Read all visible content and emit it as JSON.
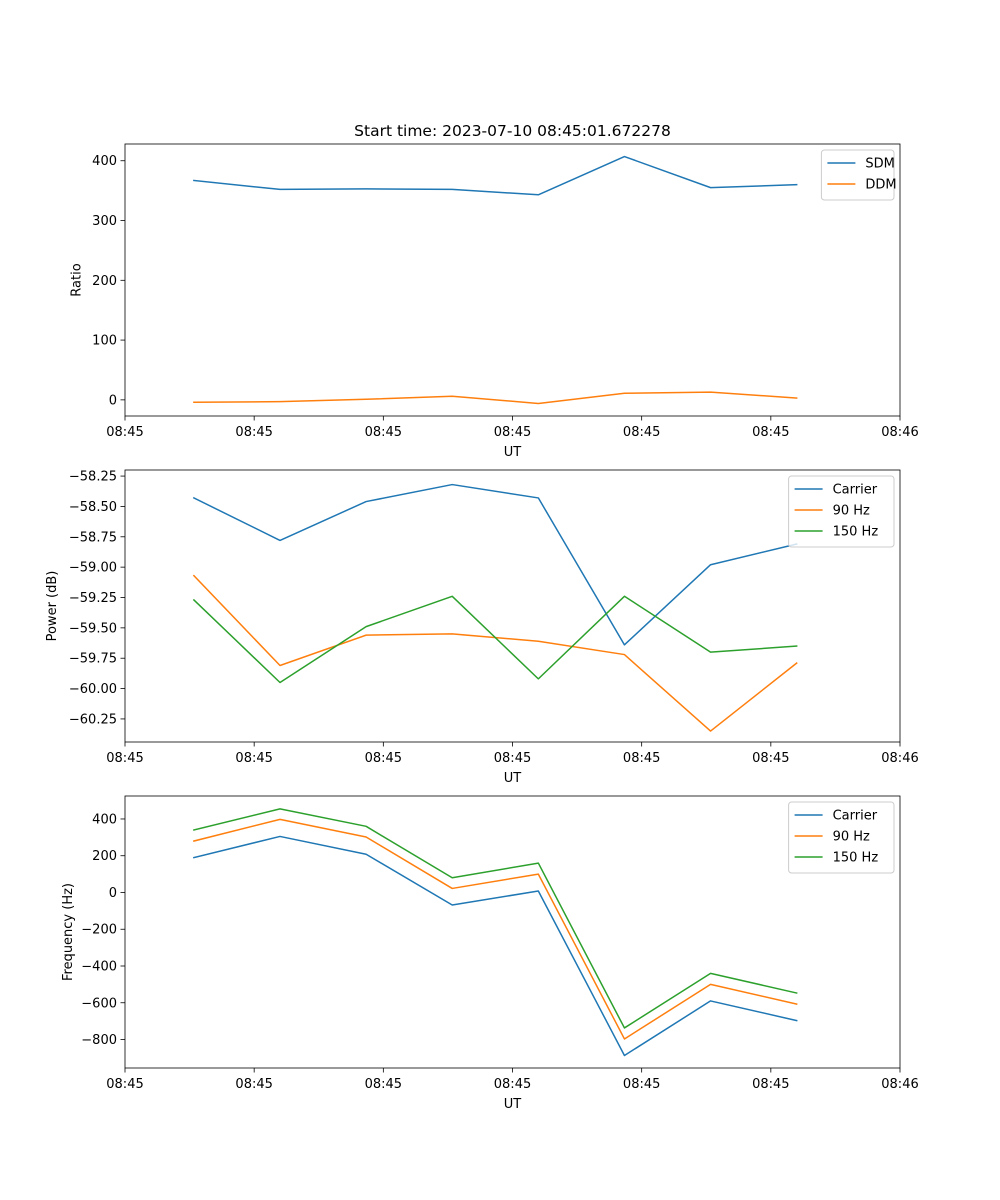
{
  "chart_data": [
    {
      "type": "line",
      "title": "Start time: 2023-07-10 08:45:01.672278",
      "xlabel": "UT",
      "ylabel": "Ratio",
      "x": [
        1,
        2,
        3,
        4,
        5,
        6,
        7,
        8
      ],
      "xlim": [
        0.2,
        9.2
      ],
      "xticks": [
        0.2,
        1.7,
        3.2,
        4.7,
        6.2,
        7.7,
        9.2
      ],
      "xtick_labels": [
        "08:45",
        "08:45",
        "08:45",
        "08:45",
        "08:45",
        "08:45",
        "08:46"
      ],
      "ylim": [
        -27,
        428
      ],
      "yticks": [
        0,
        100,
        200,
        300,
        400
      ],
      "ytick_labels": [
        "0",
        "100",
        "200",
        "300",
        "400"
      ],
      "legend_position": "upper-right",
      "series": [
        {
          "name": "SDM",
          "color": "#1f77b4",
          "values": [
            367,
            352,
            353,
            352,
            343,
            407,
            355,
            360
          ]
        },
        {
          "name": "DDM",
          "color": "#ff7f0e",
          "values": [
            -4,
            -3,
            1,
            6,
            -6,
            11,
            13,
            3
          ]
        }
      ]
    },
    {
      "type": "line",
      "title": "",
      "xlabel": "UT",
      "ylabel": "Power (dB)",
      "x": [
        1,
        2,
        3,
        4,
        5,
        6,
        7,
        8
      ],
      "xlim": [
        0.2,
        9.2
      ],
      "xticks": [
        0.2,
        1.7,
        3.2,
        4.7,
        6.2,
        7.7,
        9.2
      ],
      "xtick_labels": [
        "08:45",
        "08:45",
        "08:45",
        "08:45",
        "08:45",
        "08:45",
        "08:46"
      ],
      "ylim": [
        -60.44,
        -58.2
      ],
      "yticks": [
        -58.25,
        -58.5,
        -58.75,
        -59.0,
        -59.25,
        -59.5,
        -59.75,
        -60.0,
        -60.25
      ],
      "ytick_labels": [
        "−58.25",
        "−58.50",
        "−58.75",
        "−59.00",
        "−59.25",
        "−59.50",
        "−59.75",
        "−60.00",
        "−60.25"
      ],
      "legend_position": "upper-right",
      "series": [
        {
          "name": "Carrier",
          "color": "#1f77b4",
          "values": [
            -58.43,
            -58.78,
            -58.46,
            -58.32,
            -58.43,
            -59.64,
            -58.98,
            -58.81
          ]
        },
        {
          "name": "90 Hz",
          "color": "#ff7f0e",
          "values": [
            -59.07,
            -59.81,
            -59.56,
            -59.55,
            -59.61,
            -59.72,
            -60.35,
            -59.79
          ]
        },
        {
          "name": "150 Hz",
          "color": "#2ca02c",
          "values": [
            -59.27,
            -59.95,
            -59.49,
            -59.24,
            -59.92,
            -59.24,
            -59.7,
            -59.65
          ]
        }
      ]
    },
    {
      "type": "line",
      "title": "",
      "xlabel": "UT",
      "ylabel": "Frequency (Hz)",
      "x": [
        1,
        2,
        3,
        4,
        5,
        6,
        7,
        8
      ],
      "xlim": [
        0.2,
        9.2
      ],
      "xticks": [
        0.2,
        1.7,
        3.2,
        4.7,
        6.2,
        7.7,
        9.2
      ],
      "xtick_labels": [
        "08:45",
        "08:45",
        "08:45",
        "08:45",
        "08:45",
        "08:45",
        "08:46"
      ],
      "ylim": [
        -955,
        525
      ],
      "yticks": [
        400,
        200,
        0,
        -200,
        -400,
        -600,
        -800
      ],
      "ytick_labels": [
        "400",
        "200",
        "0",
        "−200",
        "−400",
        "−600",
        "−800"
      ],
      "legend_position": "upper-right",
      "series": [
        {
          "name": "Carrier",
          "color": "#1f77b4",
          "values": [
            190,
            305,
            208,
            -68,
            8,
            -887,
            -590,
            -697
          ]
        },
        {
          "name": "90 Hz",
          "color": "#ff7f0e",
          "values": [
            280,
            398,
            302,
            22,
            100,
            -797,
            -500,
            -607
          ]
        },
        {
          "name": "150 Hz",
          "color": "#2ca02c",
          "values": [
            340,
            455,
            360,
            80,
            160,
            -737,
            -440,
            -547
          ]
        }
      ]
    }
  ]
}
